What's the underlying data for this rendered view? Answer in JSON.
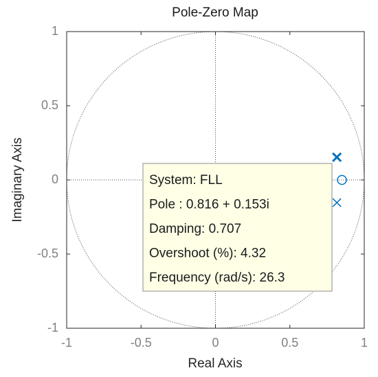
{
  "chart_data": {
    "type": "scatter",
    "title": "Pole-Zero Map",
    "xlabel": "Real Axis",
    "ylabel": "Imaginary Axis",
    "xlim": [
      -1,
      1
    ],
    "ylim": [
      -1,
      1
    ],
    "xticks": [
      -1,
      -0.5,
      0,
      0.5,
      1
    ],
    "yticks": [
      -1,
      -0.5,
      0,
      0.5,
      1
    ],
    "grid": false,
    "series": [
      {
        "marker": "x",
        "color": "#0072bd",
        "x": [
          0.816,
          0.816
        ],
        "values": [
          0.153,
          -0.153
        ]
      },
      {
        "marker": "o",
        "color": "#0072bd",
        "x": [
          0.85
        ],
        "values": [
          0
        ]
      }
    ],
    "annotations": [
      "System: FLL",
      "Pole : 0.816 + 0.153i",
      "Damping: 0.707",
      "Overshoot (%): 4.32",
      "Frequency (rad/s): 26.3"
    ]
  }
}
